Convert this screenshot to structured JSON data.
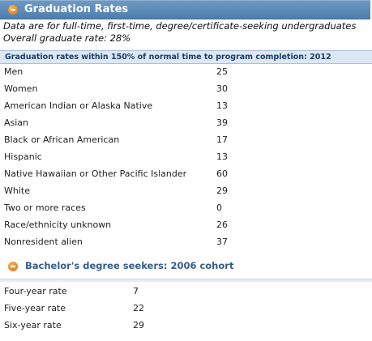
{
  "header": {
    "title": "Graduation Rates",
    "icon": "minus-circle-icon",
    "color": "#5a88b8"
  },
  "intro": {
    "line1": "Data are for full-time, first-time, degree/certificate-seeking undergraduates",
    "line2": "Overall graduate rate: 28%"
  },
  "table": {
    "header": "Graduation rates within 150% of normal time to program completion: 2012",
    "rows": [
      {
        "label": "Men",
        "value": "25"
      },
      {
        "label": "Women",
        "value": "30"
      },
      {
        "label": "American Indian or Alaska Native",
        "value": "13"
      },
      {
        "label": "Asian",
        "value": "39"
      },
      {
        "label": "Black or African American",
        "value": "17"
      },
      {
        "label": "Hispanic",
        "value": "13"
      },
      {
        "label": "Native Hawaiian or Other Pacific Islander",
        "value": "60"
      },
      {
        "label": "White",
        "value": "29"
      },
      {
        "label": "Two or more races",
        "value": "0"
      },
      {
        "label": "Race/ethnicity unknown",
        "value": "26"
      },
      {
        "label": "Nonresident alien",
        "value": "37"
      }
    ]
  },
  "cohort": {
    "title": "Bachelor's degree seekers: 2006 cohort",
    "icon": "minus-circle-icon",
    "rows": [
      {
        "label": "Four-year rate",
        "value": "7"
      },
      {
        "label": "Five-year rate",
        "value": "22"
      },
      {
        "label": "Six-year rate",
        "value": "29"
      }
    ]
  }
}
